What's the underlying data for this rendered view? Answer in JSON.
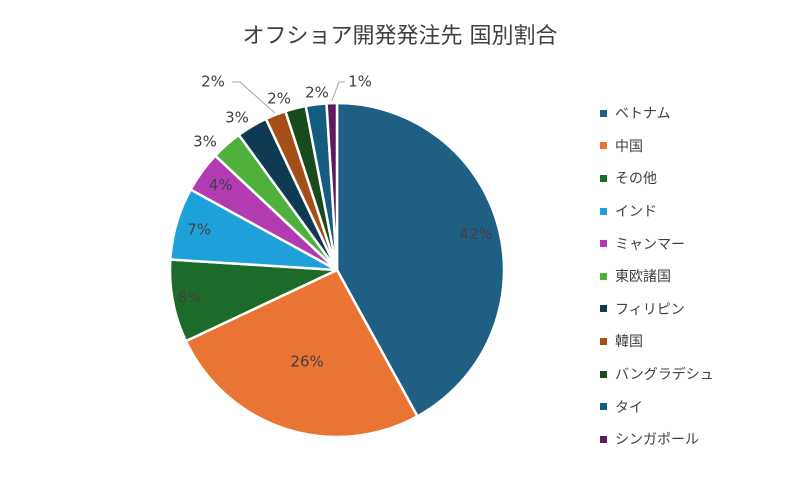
{
  "chart_data": {
    "type": "pie",
    "title": "オフショア開発発注先 国別割合",
    "categories": [
      "ベトナム",
      "中国",
      "その他",
      "インド",
      "ミャンマー",
      "東欧諸国",
      "フィリピン",
      "韓国",
      "バングラデシュ",
      "タイ",
      "シンガポール"
    ],
    "values": [
      42,
      26,
      8,
      7,
      4,
      3,
      3,
      2,
      2,
      2,
      1
    ],
    "labels": [
      "42%",
      "26%",
      "8%",
      "7%",
      "4%",
      "3%",
      "3%",
      "2%",
      "2%",
      "2%",
      "1%"
    ],
    "colors": [
      "#1f5f84",
      "#ea7434",
      "#1d6b28",
      "#1ea1d9",
      "#b23bb2",
      "#4fb03b",
      "#0e3b52",
      "#a54f18",
      "#184a1e",
      "#145d80",
      "#5e1a5e"
    ],
    "legend_position": "right"
  }
}
